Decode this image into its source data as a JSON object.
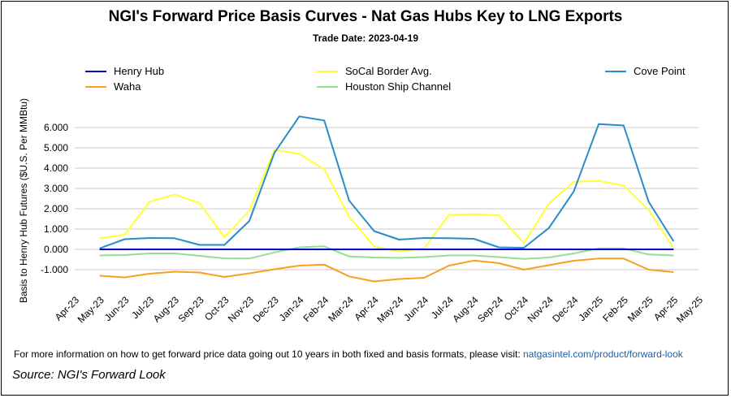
{
  "title": "NGI's Forward Price Basis Curves - Nat Gas Hubs Key to LNG Exports",
  "subtitle": "Trade Date: 2023-04-19",
  "footer": {
    "text": "For more information on how to get forward price data going out 10 years in both fixed and basis formats, please visit: ",
    "link": "natgasintel.com/product/forward-look"
  },
  "source": "Source: NGI's Forward Look",
  "chart_data": {
    "type": "line",
    "title": "NGI's Forward Price Basis Curves - Nat Gas Hubs Key to LNG Exports",
    "subtitle": "Trade Date: 2023-04-19",
    "xlabel": "",
    "ylabel": "Basis to Henry Hub Futures ($U.S. Per MMBtu)",
    "ylim": [
      -1.2,
      6.6
    ],
    "yticks": [
      "6.000",
      "5.000",
      "4.000",
      "3.000",
      "2.000",
      "1.000",
      "0.000",
      "-1.000"
    ],
    "ytick_values": [
      6,
      5,
      4,
      3,
      2,
      1,
      0,
      -1
    ],
    "grid": true,
    "legend_position": "top",
    "categories": [
      "Apr-23",
      "May-23",
      "Jun-23",
      "Jul-23",
      "Aug-23",
      "Sep-23",
      "Oct-23",
      "Nov-23",
      "Dec-23",
      "Jan-24",
      "Feb-24",
      "Mar-24",
      "Apr-24",
      "May-24",
      "Jun-24",
      "Jul-24",
      "Aug-24",
      "Sep-24",
      "Oct-24",
      "Nov-24",
      "Dec-24",
      "Jan-25",
      "Feb-25",
      "Mar-25",
      "Apr-25",
      "May-25"
    ],
    "series": [
      {
        "name": "Henry Hub",
        "color": "#0000cc",
        "values": [
          null,
          0,
          0,
          0,
          0,
          0,
          0,
          0,
          0,
          0,
          0,
          0,
          0,
          0,
          0,
          0,
          0,
          0,
          0,
          0,
          0,
          0,
          0,
          0,
          0,
          null
        ]
      },
      {
        "name": "Waha",
        "color": "#f5a020",
        "values": [
          null,
          -1.3,
          -1.38,
          -1.2,
          -1.1,
          -1.14,
          -1.36,
          -1.18,
          -0.98,
          -0.8,
          -0.75,
          -1.33,
          -1.58,
          -1.46,
          -1.4,
          -0.8,
          -0.55,
          -0.68,
          -1.0,
          -0.78,
          -0.56,
          -0.45,
          -0.45,
          -1.0,
          -1.12,
          null
        ]
      },
      {
        "name": "SoCal Border Avg.",
        "color": "#ffff33",
        "values": [
          null,
          0.55,
          0.72,
          2.35,
          2.7,
          2.28,
          0.6,
          1.9,
          4.9,
          4.7,
          3.95,
          1.6,
          0.15,
          -0.1,
          0.05,
          1.7,
          1.73,
          1.68,
          0.3,
          2.25,
          3.33,
          3.37,
          3.15,
          1.95,
          0.05,
          null
        ]
      },
      {
        "name": "Houston Ship Channel",
        "color": "#90e090",
        "values": [
          null,
          -0.3,
          -0.28,
          -0.2,
          -0.2,
          -0.32,
          -0.44,
          -0.45,
          -0.15,
          0.1,
          0.15,
          -0.35,
          -0.4,
          -0.42,
          -0.38,
          -0.3,
          -0.3,
          -0.38,
          -0.47,
          -0.4,
          -0.2,
          0.05,
          0.05,
          -0.25,
          -0.3,
          null
        ]
      },
      {
        "name": "Cove Point",
        "color": "#2a8cc6",
        "values": [
          null,
          0.05,
          0.5,
          0.56,
          0.55,
          0.22,
          0.22,
          1.4,
          4.75,
          6.55,
          6.35,
          2.4,
          0.9,
          0.48,
          0.56,
          0.55,
          0.52,
          0.1,
          0.08,
          1.05,
          2.85,
          6.17,
          6.1,
          2.35,
          0.4,
          null
        ]
      }
    ]
  }
}
